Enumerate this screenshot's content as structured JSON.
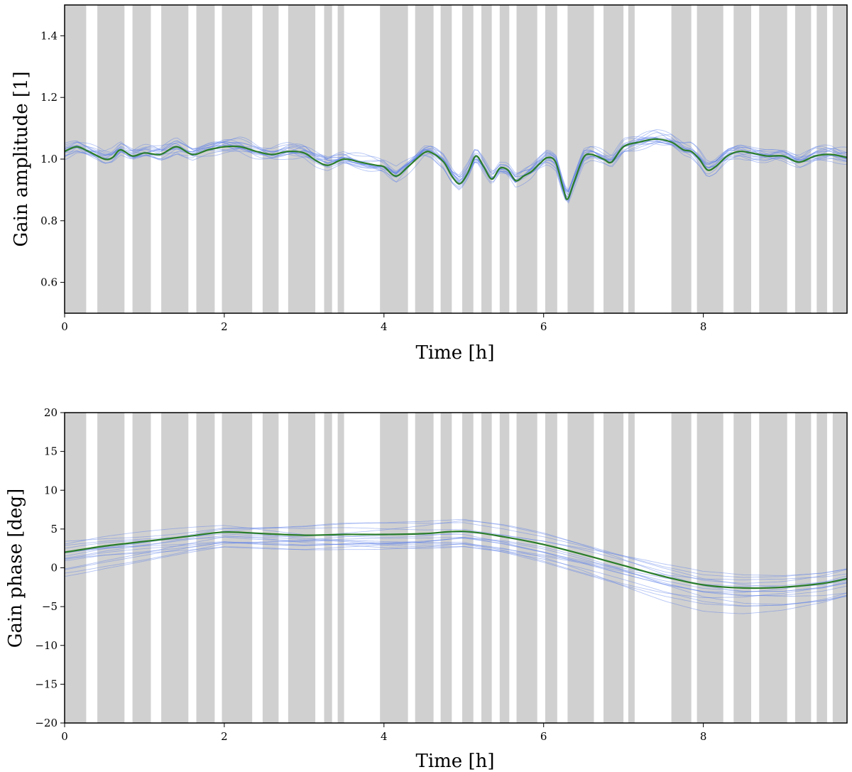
{
  "colors": {
    "shade": "#c8c8c8",
    "samples": "#5b7fe8",
    "mean": "#2a7d2a",
    "axes": "#000000"
  },
  "chart_data": [
    {
      "type": "line",
      "xlabel": "Time [h]",
      "ylabel": "Gain amplitude [1]",
      "xlim": [
        0,
        9.8
      ],
      "ylim": [
        0.5,
        1.5
      ],
      "xticks": [
        0,
        2,
        4,
        6,
        8
      ],
      "yticks": [
        0.6,
        0.8,
        1.0,
        1.2,
        1.4
      ],
      "grid": false,
      "shaded_intervals_h": [
        [
          0.0,
          0.27
        ],
        [
          0.41,
          0.75
        ],
        [
          0.85,
          1.08
        ],
        [
          1.21,
          1.55
        ],
        [
          1.65,
          1.88
        ],
        [
          1.97,
          2.35
        ],
        [
          2.48,
          2.68
        ],
        [
          2.8,
          3.14
        ],
        [
          3.25,
          3.35
        ],
        [
          3.42,
          3.5
        ],
        [
          3.95,
          4.3
        ],
        [
          4.39,
          4.62
        ],
        [
          4.71,
          4.85
        ],
        [
          4.98,
          5.12
        ],
        [
          5.22,
          5.35
        ],
        [
          5.45,
          5.57
        ],
        [
          5.66,
          5.92
        ],
        [
          6.02,
          6.17
        ],
        [
          6.3,
          6.63
        ],
        [
          6.75,
          7.0
        ],
        [
          7.06,
          7.14
        ],
        [
          7.6,
          7.85
        ],
        [
          7.92,
          8.25
        ],
        [
          8.38,
          8.6
        ],
        [
          8.7,
          9.05
        ],
        [
          9.15,
          9.35
        ],
        [
          9.42,
          9.55
        ],
        [
          9.62,
          9.8
        ]
      ],
      "series": [
        {
          "role": "mean",
          "x": [
            0,
            0.15,
            0.3,
            0.5,
            0.6,
            0.7,
            0.85,
            1.0,
            1.2,
            1.4,
            1.6,
            1.8,
            2.0,
            2.2,
            2.4,
            2.6,
            2.8,
            3.0,
            3.15,
            3.3,
            3.5,
            3.7,
            3.9,
            4.0,
            4.15,
            4.3,
            4.5,
            4.6,
            4.75,
            4.85,
            4.95,
            5.05,
            5.15,
            5.25,
            5.35,
            5.45,
            5.55,
            5.65,
            5.75,
            5.85,
            5.95,
            6.05,
            6.15,
            6.25,
            6.3,
            6.38,
            6.5,
            6.6,
            6.75,
            6.85,
            7.0,
            7.2,
            7.4,
            7.6,
            7.75,
            7.85,
            7.95,
            8.05,
            8.15,
            8.3,
            8.45,
            8.6,
            8.8,
            9.0,
            9.2,
            9.4,
            9.6,
            9.8
          ],
          "y": [
            1.025,
            1.04,
            1.025,
            1.0,
            1.005,
            1.03,
            1.01,
            1.02,
            1.015,
            1.04,
            1.015,
            1.03,
            1.04,
            1.04,
            1.025,
            1.015,
            1.025,
            1.02,
            0.995,
            0.98,
            1.0,
            0.99,
            0.98,
            0.975,
            0.945,
            0.975,
            1.02,
            1.02,
            0.99,
            0.945,
            0.92,
            0.955,
            1.01,
            0.975,
            0.935,
            0.97,
            0.965,
            0.93,
            0.945,
            0.96,
            0.985,
            1.005,
            0.99,
            0.9,
            0.87,
            0.925,
            1.005,
            1.015,
            1.0,
            0.99,
            1.04,
            1.055,
            1.065,
            1.055,
            1.03,
            1.025,
            1.0,
            0.965,
            0.975,
            1.01,
            1.025,
            1.02,
            1.01,
            1.01,
            0.99,
            1.01,
            1.015,
            1.005
          ]
        }
      ]
    },
    {
      "type": "line",
      "xlabel": "Time [h]",
      "ylabel": "Gain phase [deg]",
      "xlim": [
        0,
        9.8
      ],
      "ylim": [
        -20,
        20
      ],
      "xticks": [
        0,
        2,
        4,
        6,
        8
      ],
      "yticks": [
        -20,
        -15,
        -10,
        -5,
        0,
        5,
        10,
        15,
        20
      ],
      "grid": false,
      "shaded_intervals_h": [
        [
          0.0,
          0.27
        ],
        [
          0.41,
          0.75
        ],
        [
          0.85,
          1.08
        ],
        [
          1.21,
          1.55
        ],
        [
          1.65,
          1.88
        ],
        [
          1.97,
          2.35
        ],
        [
          2.48,
          2.68
        ],
        [
          2.8,
          3.14
        ],
        [
          3.25,
          3.35
        ],
        [
          3.42,
          3.5
        ],
        [
          3.95,
          4.3
        ],
        [
          4.39,
          4.62
        ],
        [
          4.71,
          4.85
        ],
        [
          4.98,
          5.12
        ],
        [
          5.22,
          5.35
        ],
        [
          5.45,
          5.57
        ],
        [
          5.66,
          5.92
        ],
        [
          6.02,
          6.17
        ],
        [
          6.3,
          6.63
        ],
        [
          6.75,
          7.0
        ],
        [
          7.06,
          7.14
        ],
        [
          7.6,
          7.85
        ],
        [
          7.92,
          8.25
        ],
        [
          8.38,
          8.6
        ],
        [
          8.7,
          9.05
        ],
        [
          9.15,
          9.35
        ],
        [
          9.42,
          9.55
        ],
        [
          9.62,
          9.8
        ]
      ],
      "series": [
        {
          "role": "mean",
          "x": [
            0,
            0.5,
            1.0,
            1.5,
            2.0,
            2.5,
            3.0,
            3.5,
            4.0,
            4.5,
            5.0,
            5.5,
            6.0,
            6.5,
            7.0,
            7.5,
            8.0,
            8.5,
            9.0,
            9.5,
            9.8
          ],
          "y": [
            2.0,
            2.8,
            3.4,
            4.0,
            4.6,
            4.4,
            4.2,
            4.3,
            4.3,
            4.4,
            4.7,
            4.0,
            3.0,
            1.7,
            0.3,
            -1.1,
            -2.2,
            -2.6,
            -2.5,
            -2.0,
            -1.4
          ]
        }
      ]
    }
  ]
}
